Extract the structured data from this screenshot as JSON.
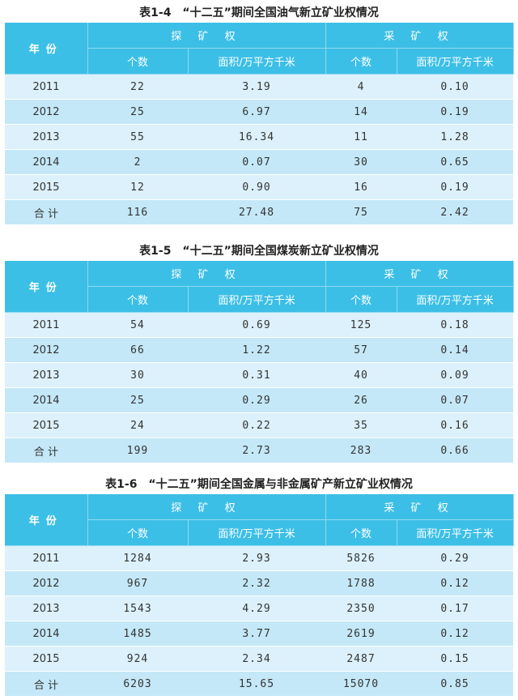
{
  "headers": {
    "year": "年份",
    "exploration": "探 矿 权",
    "mining": "采 矿 权",
    "count": "个数",
    "area": "面积/万平方千米"
  },
  "tables": [
    {
      "caption": "表1-4　“十二五”期间全国油气新立矿业权情况",
      "rows": [
        {
          "year": "2011",
          "exp_count": "22",
          "exp_area": "3.19",
          "min_count": "4",
          "min_area": "0.10"
        },
        {
          "year": "2012",
          "exp_count": "25",
          "exp_area": "6.97",
          "min_count": "14",
          "min_area": "0.19"
        },
        {
          "year": "2013",
          "exp_count": "55",
          "exp_area": "16.34",
          "min_count": "11",
          "min_area": "1.28"
        },
        {
          "year": "2014",
          "exp_count": "2",
          "exp_area": "0.07",
          "min_count": "30",
          "min_area": "0.65"
        },
        {
          "year": "2015",
          "exp_count": "12",
          "exp_area": "0.90",
          "min_count": "16",
          "min_area": "0.19"
        },
        {
          "year": "合 计",
          "exp_count": "116",
          "exp_area": "27.48",
          "min_count": "75",
          "min_area": "2.42"
        }
      ]
    },
    {
      "caption": "表1-5　“十二五”期间全国煤炭新立矿业权情况",
      "rows": [
        {
          "year": "2011",
          "exp_count": "54",
          "exp_area": "0.69",
          "min_count": "125",
          "min_area": "0.18"
        },
        {
          "year": "2012",
          "exp_count": "66",
          "exp_area": "1.22",
          "min_count": "57",
          "min_area": "0.14"
        },
        {
          "year": "2013",
          "exp_count": "30",
          "exp_area": "0.31",
          "min_count": "40",
          "min_area": "0.09"
        },
        {
          "year": "2014",
          "exp_count": "25",
          "exp_area": "0.29",
          "min_count": "26",
          "min_area": "0.07"
        },
        {
          "year": "2015",
          "exp_count": "24",
          "exp_area": "0.22",
          "min_count": "35",
          "min_area": "0.16"
        },
        {
          "year": "合 计",
          "exp_count": "199",
          "exp_area": "2.73",
          "min_count": "283",
          "min_area": "0.66"
        }
      ]
    },
    {
      "caption": "表1-6　“十二五”期间全国金属与非金属矿产新立矿业权情况",
      "rows": [
        {
          "year": "2011",
          "exp_count": "1284",
          "exp_area": "2.93",
          "min_count": "5826",
          "min_area": "0.29"
        },
        {
          "year": "2012",
          "exp_count": "967",
          "exp_area": "2.32",
          "min_count": "1788",
          "min_area": "0.12"
        },
        {
          "year": "2013",
          "exp_count": "1543",
          "exp_area": "4.29",
          "min_count": "2350",
          "min_area": "0.17"
        },
        {
          "year": "2014",
          "exp_count": "1485",
          "exp_area": "3.77",
          "min_count": "2619",
          "min_area": "0.12"
        },
        {
          "year": "2015",
          "exp_count": "924",
          "exp_area": "2.34",
          "min_count": "2487",
          "min_area": "0.15"
        },
        {
          "year": "合 计",
          "exp_count": "6203",
          "exp_area": "15.65",
          "min_count": "15070",
          "min_area": "0.85"
        }
      ]
    }
  ]
}
